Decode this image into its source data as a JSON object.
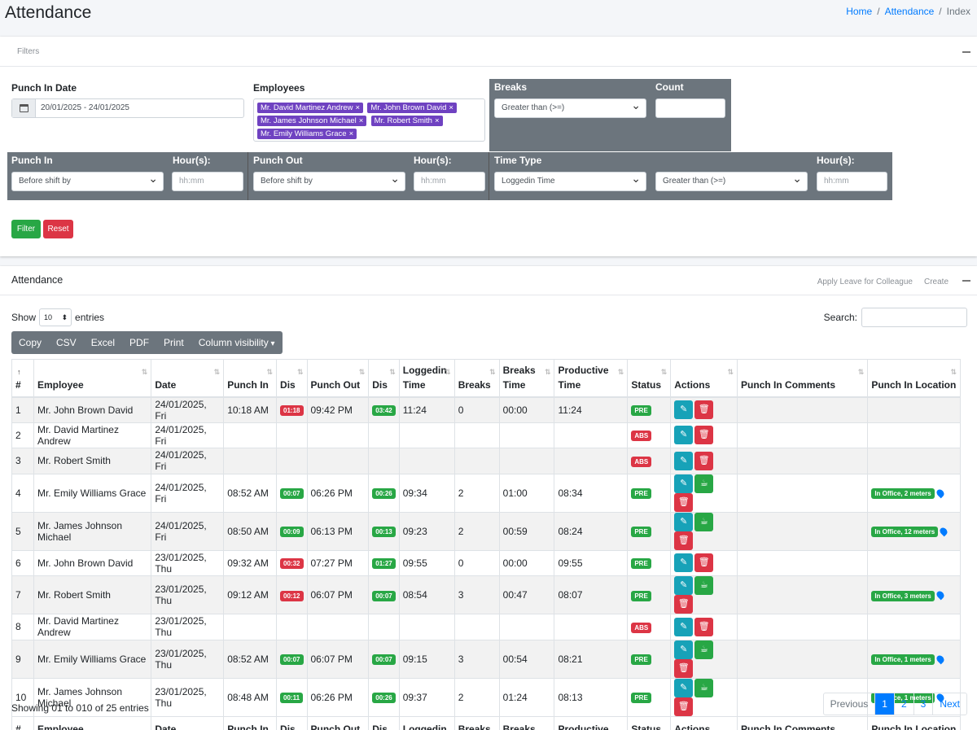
{
  "header": {
    "title": "Attendance",
    "breadcrumb": [
      {
        "label": "Home"
      },
      {
        "label": "Attendance"
      },
      {
        "label": "Index"
      }
    ],
    "separator": "/"
  },
  "filters": {
    "title": "Filters",
    "punch_in_date": {
      "label": "Punch In Date",
      "value": "20/01/2025 - 24/01/2025"
    },
    "employees": {
      "label": "Employees",
      "selected": [
        "Mr. David Martinez Andrew",
        "Mr. John Brown David",
        "Mr. James Johnson Michael",
        "Mr. Robert Smith",
        "Mr. Emily Williams Grace"
      ]
    },
    "breaks": {
      "label": "Breaks",
      "value": "Greater than (>=)"
    },
    "count": {
      "label": "Count",
      "value": ""
    },
    "punch_in": {
      "label": "Punch In",
      "value": "Before shift by",
      "hours_label": "Hour(s):",
      "hours_placeholder": "hh:mm"
    },
    "punch_out": {
      "label": "Punch Out",
      "value": "Before shift by",
      "hours_label": "Hour(s):",
      "hours_placeholder": "hh:mm"
    },
    "time_type": {
      "label": "Time Type",
      "value": "Loggedin Time",
      "comparison": "Greater than (>=)",
      "hours_label": "Hour(s):",
      "hours_placeholder": "hh:mm"
    },
    "filter_button": "Filter",
    "reset_button": "Reset"
  },
  "attendance": {
    "title": "Attendance",
    "apply_leave_link": "Apply Leave for Colleague",
    "create_link": "Create",
    "show_label": "Show",
    "entries_value": "10",
    "entries_label": "entries",
    "search_label": "Search:",
    "export_buttons": [
      "Copy",
      "CSV",
      "Excel",
      "PDF",
      "Print",
      "Column visibility"
    ],
    "columns": [
      "#",
      "Employee",
      "Date",
      "Punch In",
      "Dis",
      "Punch Out",
      "Dis",
      "Loggedin Time",
      "Breaks",
      "Breaks Time",
      "Productive Time",
      "Status",
      "Actions",
      "Punch In Comments",
      "Punch In Location"
    ],
    "rows": [
      {
        "n": "1",
        "employee": "Mr. John Brown David",
        "date": "24/01/2025, Fri",
        "punch_in": "10:18 AM",
        "dis_in": "01:18",
        "dis_in_color": "red",
        "punch_out": "09:42 PM",
        "dis_out": "03:42",
        "dis_out_color": "green",
        "loggedin": "11:24",
        "breaks": "0",
        "breaks_time": "00:00",
        "productive": "11:24",
        "status": "PRE",
        "actions": [
          "edit",
          "delete"
        ],
        "comments": "",
        "location": ""
      },
      {
        "n": "2",
        "employee": "Mr. David Martinez Andrew",
        "date": "24/01/2025, Fri",
        "punch_in": "",
        "dis_in": "",
        "dis_in_color": "",
        "punch_out": "",
        "dis_out": "",
        "dis_out_color": "",
        "loggedin": "",
        "breaks": "",
        "breaks_time": "",
        "productive": "",
        "status": "ABS",
        "actions": [
          "edit",
          "delete"
        ],
        "comments": "",
        "location": ""
      },
      {
        "n": "3",
        "employee": "Mr. Robert Smith",
        "date": "24/01/2025, Fri",
        "punch_in": "",
        "dis_in": "",
        "dis_in_color": "",
        "punch_out": "",
        "dis_out": "",
        "dis_out_color": "",
        "loggedin": "",
        "breaks": "",
        "breaks_time": "",
        "productive": "",
        "status": "ABS",
        "actions": [
          "edit",
          "delete"
        ],
        "comments": "",
        "location": ""
      },
      {
        "n": "4",
        "employee": "Mr. Emily Williams Grace",
        "date": "24/01/2025, Fri",
        "punch_in": "08:52 AM",
        "dis_in": "00:07",
        "dis_in_color": "green",
        "punch_out": "06:26 PM",
        "dis_out": "00:26",
        "dis_out_color": "green",
        "loggedin": "09:34",
        "breaks": "2",
        "breaks_time": "01:00",
        "productive": "08:34",
        "status": "PRE",
        "actions": [
          "edit",
          "break",
          "delete"
        ],
        "comments": "",
        "location": "In Office, 2 meters"
      },
      {
        "n": "5",
        "employee": "Mr. James Johnson Michael",
        "date": "24/01/2025, Fri",
        "punch_in": "08:50 AM",
        "dis_in": "00:09",
        "dis_in_color": "green",
        "punch_out": "06:13 PM",
        "dis_out": "00:13",
        "dis_out_color": "green",
        "loggedin": "09:23",
        "breaks": "2",
        "breaks_time": "00:59",
        "productive": "08:24",
        "status": "PRE",
        "actions": [
          "edit",
          "break",
          "delete"
        ],
        "comments": "",
        "location": "In Office, 12 meters"
      },
      {
        "n": "6",
        "employee": "Mr. John Brown David",
        "date": "23/01/2025, Thu",
        "punch_in": "09:32 AM",
        "dis_in": "00:32",
        "dis_in_color": "red",
        "punch_out": "07:27 PM",
        "dis_out": "01:27",
        "dis_out_color": "green",
        "loggedin": "09:55",
        "breaks": "0",
        "breaks_time": "00:00",
        "productive": "09:55",
        "status": "PRE",
        "actions": [
          "edit",
          "delete"
        ],
        "comments": "",
        "location": ""
      },
      {
        "n": "7",
        "employee": "Mr. Robert Smith",
        "date": "23/01/2025, Thu",
        "punch_in": "09:12 AM",
        "dis_in": "00:12",
        "dis_in_color": "red",
        "punch_out": "06:07 PM",
        "dis_out": "00:07",
        "dis_out_color": "green",
        "loggedin": "08:54",
        "breaks": "3",
        "breaks_time": "00:47",
        "productive": "08:07",
        "status": "PRE",
        "actions": [
          "edit",
          "break",
          "delete"
        ],
        "comments": "",
        "location": "In Office, 3 meters"
      },
      {
        "n": "8",
        "employee": "Mr. David Martinez Andrew",
        "date": "23/01/2025, Thu",
        "punch_in": "",
        "dis_in": "",
        "dis_in_color": "",
        "punch_out": "",
        "dis_out": "",
        "dis_out_color": "",
        "loggedin": "",
        "breaks": "",
        "breaks_time": "",
        "productive": "",
        "status": "ABS",
        "actions": [
          "edit",
          "delete"
        ],
        "comments": "",
        "location": ""
      },
      {
        "n": "9",
        "employee": "Mr. Emily Williams Grace",
        "date": "23/01/2025, Thu",
        "punch_in": "08:52 AM",
        "dis_in": "00:07",
        "dis_in_color": "green",
        "punch_out": "06:07 PM",
        "dis_out": "00:07",
        "dis_out_color": "green",
        "loggedin": "09:15",
        "breaks": "3",
        "breaks_time": "00:54",
        "productive": "08:21",
        "status": "PRE",
        "actions": [
          "edit",
          "break",
          "delete"
        ],
        "comments": "",
        "location": "In Office, 1 meters"
      },
      {
        "n": "10",
        "employee": "Mr. James Johnson Michael",
        "date": "23/01/2025, Thu",
        "punch_in": "08:48 AM",
        "dis_in": "00:11",
        "dis_in_color": "green",
        "punch_out": "06:26 PM",
        "dis_out": "00:26",
        "dis_out_color": "green",
        "loggedin": "09:37",
        "breaks": "2",
        "breaks_time": "01:24",
        "productive": "08:13",
        "status": "PRE",
        "actions": [
          "edit",
          "break",
          "delete"
        ],
        "comments": "",
        "location": "In Office, 1 meters"
      }
    ],
    "info": "Showing 01 to 010 of 25 entries",
    "pagination": {
      "previous": "Previous",
      "pages": [
        "1",
        "2",
        "3"
      ],
      "current": "1",
      "next": "Next"
    }
  },
  "colors": {
    "primary": "#007bff",
    "success": "#28a745",
    "danger": "#dc3545",
    "info": "#17a2b8",
    "secondary": "#6c757d",
    "chip": "#6f42c1"
  }
}
